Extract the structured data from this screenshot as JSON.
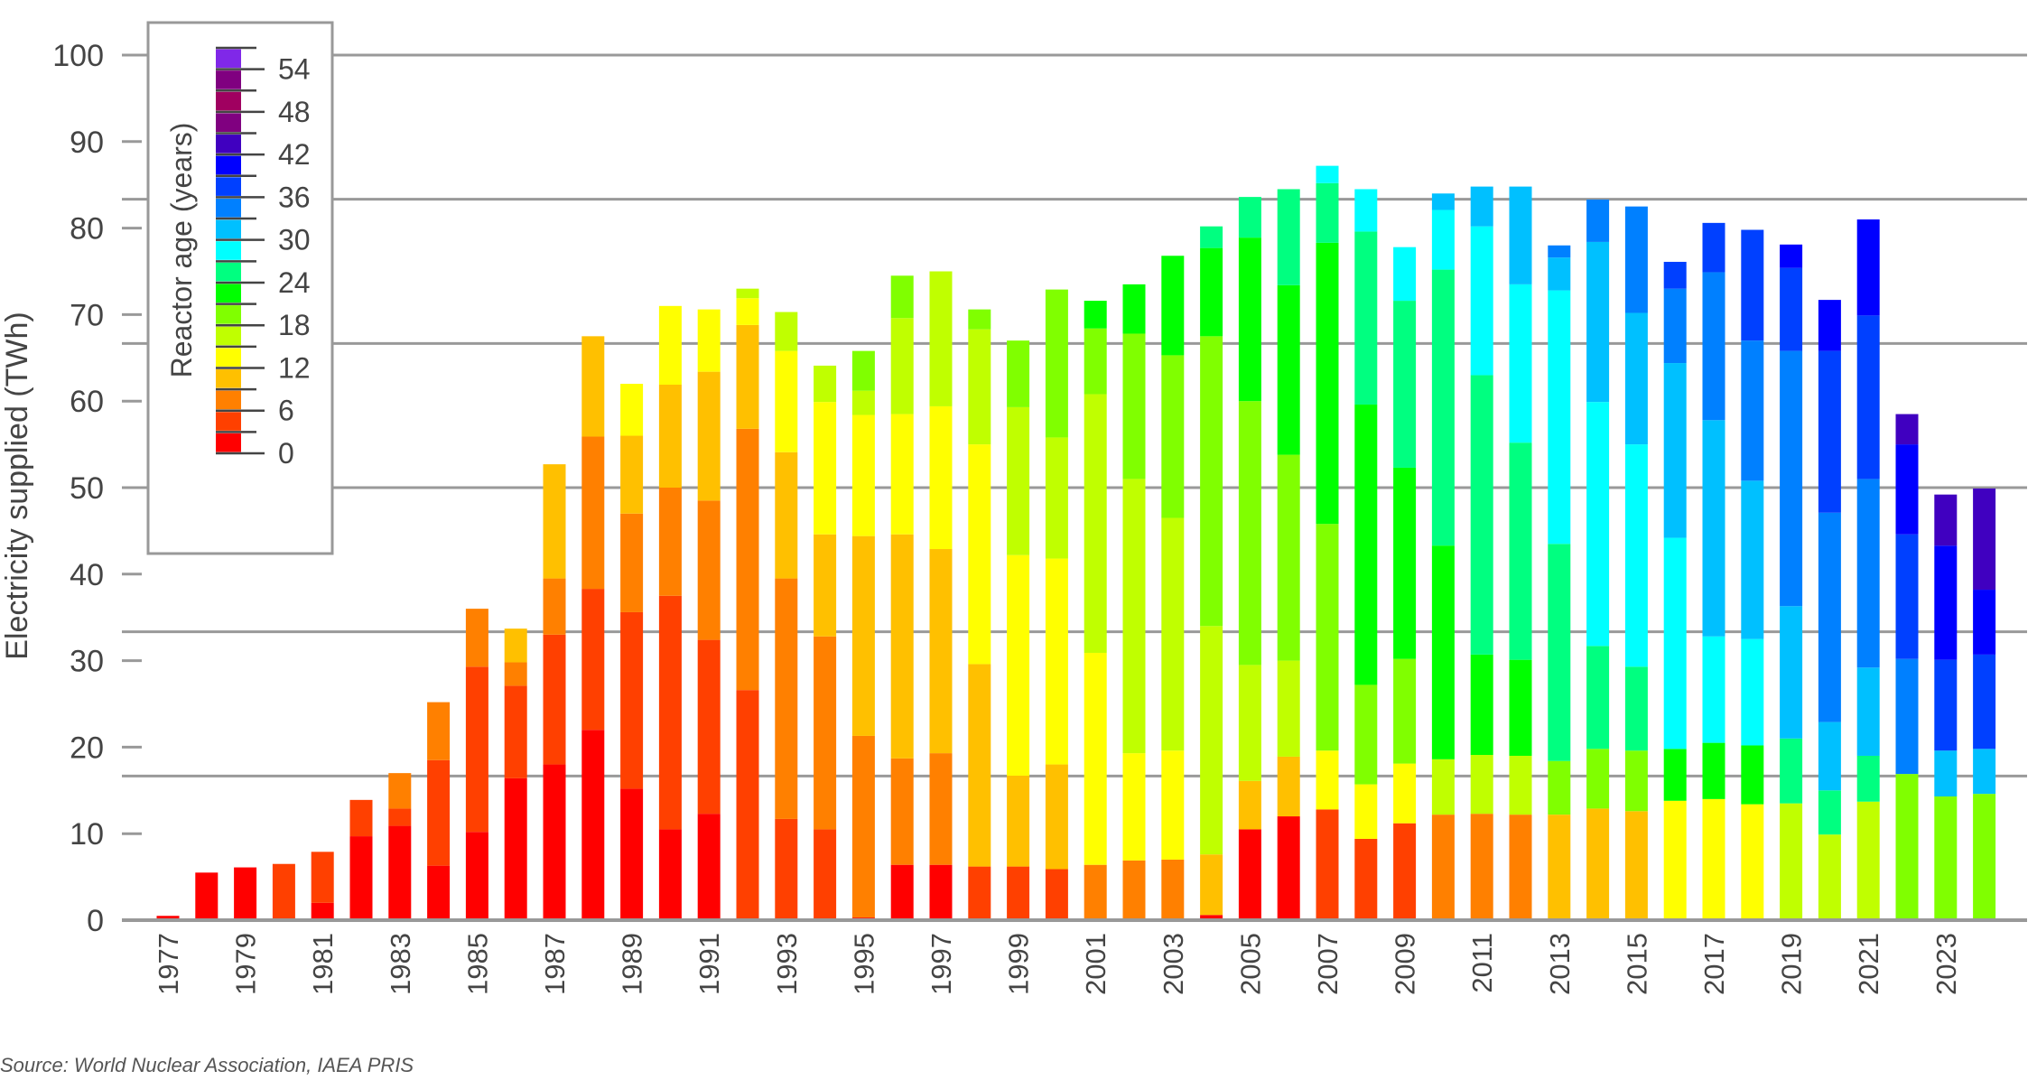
{
  "chart_data": {
    "type": "bar",
    "stacked": true,
    "ylabel": "Electricity supplied (TWh)",
    "ylim": [
      0,
      100
    ],
    "yticks": [
      0,
      10,
      20,
      30,
      40,
      50,
      60,
      70,
      80,
      90,
      100
    ],
    "xtick_labels": [
      "1977",
      "1979",
      "1981",
      "1983",
      "1985",
      "1987",
      "1989",
      "1991",
      "1993",
      "1995",
      "1997",
      "1999",
      "2001",
      "2003",
      "2005",
      "2007",
      "2009",
      "2011",
      "2013",
      "2015",
      "2017",
      "2019",
      "2021",
      "2023"
    ],
    "grid": true,
    "legend": {
      "title": "Reactor age (years)",
      "placement": "top-left",
      "tick_labels": [
        "0",
        "6",
        "12",
        "18",
        "24",
        "30",
        "36",
        "42",
        "48",
        "54"
      ],
      "bands": [
        0,
        3,
        6,
        9,
        12,
        15,
        18,
        21,
        24,
        27,
        30,
        33,
        36,
        39,
        42,
        45,
        48,
        51,
        54
      ],
      "colors": [
        "#ff0000",
        "#ff4000",
        "#ff8000",
        "#ffc000",
        "#ffff00",
        "#c0ff00",
        "#80ff00",
        "#00ff00",
        "#00ff80",
        "#00ffff",
        "#00c0ff",
        "#0080ff",
        "#0040ff",
        "#0000ff",
        "#4000c0",
        "#800080",
        "#a00060",
        "#800080",
        "#8028e8"
      ]
    },
    "years": [
      1977,
      1978,
      1979,
      1980,
      1981,
      1982,
      1983,
      1984,
      1985,
      1986,
      1987,
      1988,
      1989,
      1990,
      1991,
      1992,
      1993,
      1994,
      1995,
      1996,
      1997,
      1998,
      1999,
      2000,
      2001,
      2002,
      2003,
      2004,
      2005,
      2006,
      2007,
      2008,
      2009,
      2010,
      2011,
      2012,
      2013,
      2014,
      2015,
      2016,
      2017,
      2018,
      2019,
      2020,
      2021,
      2022,
      2023,
      2024
    ],
    "segments_age_twh": [
      [
        [
          0,
          0.5
        ]
      ],
      [
        [
          0,
          5.5
        ]
      ],
      [
        [
          0,
          6.1
        ]
      ],
      [
        [
          3,
          6.5
        ]
      ],
      [
        [
          0,
          2
        ],
        [
          3,
          5.9
        ]
      ],
      [
        [
          0,
          9.7
        ],
        [
          3,
          4.2
        ]
      ],
      [
        [
          0,
          10.9
        ],
        [
          3,
          2
        ],
        [
          6,
          4.1
        ]
      ],
      [
        [
          0,
          6.3
        ],
        [
          3,
          12.2
        ],
        [
          6,
          6.7
        ]
      ],
      [
        [
          0,
          10.2
        ],
        [
          3,
          19.1
        ],
        [
          6,
          6.7
        ]
      ],
      [
        [
          0,
          16.4
        ],
        [
          3,
          10.7
        ],
        [
          6,
          2.7
        ],
        [
          9,
          3.9
        ]
      ],
      [
        [
          0,
          18
        ],
        [
          3,
          15
        ],
        [
          6,
          6.5
        ],
        [
          9,
          13.2
        ]
      ],
      [
        [
          0,
          22
        ],
        [
          3,
          16.3
        ],
        [
          6,
          17.6
        ],
        [
          9,
          11.6
        ]
      ],
      [
        [
          0,
          15.2
        ],
        [
          3,
          20.4
        ],
        [
          6,
          11.4
        ],
        [
          9,
          9
        ],
        [
          12,
          6
        ]
      ],
      [
        [
          0,
          10.5
        ],
        [
          3,
          27
        ],
        [
          6,
          12.5
        ],
        [
          9,
          11.9
        ],
        [
          12,
          9.1
        ]
      ],
      [
        [
          0,
          12.3
        ],
        [
          3,
          20.1
        ],
        [
          6,
          16.1
        ],
        [
          9,
          14.9
        ],
        [
          12,
          7.2
        ]
      ],
      [
        [
          3,
          26.6
        ],
        [
          6,
          30.2
        ],
        [
          9,
          12
        ],
        [
          12,
          3.1
        ],
        [
          15,
          1.1
        ]
      ],
      [
        [
          3,
          11.7
        ],
        [
          6,
          27.8
        ],
        [
          9,
          14.6
        ],
        [
          12,
          11.7
        ],
        [
          15,
          4.5
        ]
      ],
      [
        [
          3,
          10.5
        ],
        [
          6,
          22.3
        ],
        [
          9,
          11.8
        ],
        [
          12,
          15.3
        ],
        [
          15,
          4.2
        ]
      ],
      [
        [
          0,
          0.3
        ],
        [
          6,
          21
        ],
        [
          9,
          23.1
        ],
        [
          12,
          14
        ],
        [
          15,
          2.8
        ],
        [
          18,
          4.6
        ]
      ],
      [
        [
          0,
          6.4
        ],
        [
          6,
          12.3
        ],
        [
          9,
          25.9
        ],
        [
          12,
          13.9
        ],
        [
          15,
          11.1
        ],
        [
          18,
          4.9
        ]
      ],
      [
        [
          0,
          6.4
        ],
        [
          6,
          12.9
        ],
        [
          9,
          23.6
        ],
        [
          12,
          16.5
        ],
        [
          15,
          15.6
        ]
      ],
      [
        [
          3,
          6.2
        ],
        [
          9,
          23.4
        ],
        [
          12,
          25.4
        ],
        [
          15,
          13.3
        ],
        [
          18,
          2.3
        ]
      ],
      [
        [
          3,
          6.2
        ],
        [
          9,
          10.5
        ],
        [
          12,
          25.5
        ],
        [
          15,
          17.1
        ],
        [
          18,
          7.7
        ]
      ],
      [
        [
          3,
          5.9
        ],
        [
          9,
          12.1
        ],
        [
          12,
          23.8
        ],
        [
          15,
          14
        ],
        [
          18,
          17.1
        ]
      ],
      [
        [
          6,
          6.4
        ],
        [
          12,
          24.5
        ],
        [
          15,
          29.9
        ],
        [
          18,
          7.6
        ],
        [
          21,
          3.2
        ]
      ],
      [
        [
          6,
          6.9
        ],
        [
          12,
          12.4
        ],
        [
          15,
          31.7
        ],
        [
          18,
          16.8
        ],
        [
          21,
          5.7
        ]
      ],
      [
        [
          6,
          7
        ],
        [
          12,
          12.6
        ],
        [
          15,
          26.9
        ],
        [
          18,
          18.8
        ],
        [
          21,
          11.5
        ]
      ],
      [
        [
          0,
          0.6
        ],
        [
          9,
          7
        ],
        [
          15,
          26.4
        ],
        [
          18,
          33.5
        ],
        [
          21,
          10.2
        ],
        [
          24,
          2.5
        ]
      ],
      [
        [
          0,
          10.5
        ],
        [
          9,
          5.6
        ],
        [
          15,
          13.4
        ],
        [
          18,
          30.5
        ],
        [
          21,
          18.9
        ],
        [
          24,
          4.7
        ]
      ],
      [
        [
          0,
          12
        ],
        [
          9,
          6.9
        ],
        [
          15,
          11.1
        ],
        [
          18,
          23.8
        ],
        [
          21,
          19.6
        ],
        [
          24,
          11.1
        ]
      ],
      [
        [
          3,
          12.8
        ],
        [
          12,
          6.8
        ],
        [
          18,
          26.2
        ],
        [
          21,
          32.5
        ],
        [
          24,
          6.9
        ],
        [
          27,
          2
        ]
      ],
      [
        [
          3,
          9.4
        ],
        [
          12,
          6.3
        ],
        [
          18,
          11.5
        ],
        [
          21,
          32.4
        ],
        [
          24,
          20
        ],
        [
          27,
          4.9
        ]
      ],
      [
        [
          3,
          11.2
        ],
        [
          12,
          6.9
        ],
        [
          18,
          12.1
        ],
        [
          21,
          22.1
        ],
        [
          24,
          19.3
        ],
        [
          27,
          6.2
        ]
      ],
      [
        [
          6,
          12.2
        ],
        [
          15,
          6.4
        ],
        [
          21,
          24.7
        ],
        [
          24,
          31.9
        ],
        [
          27,
          6.9
        ],
        [
          30,
          1.9
        ]
      ],
      [
        [
          6,
          12.3
        ],
        [
          15,
          6.8
        ],
        [
          21,
          11.6
        ],
        [
          24,
          32.3
        ],
        [
          27,
          17.2
        ],
        [
          30,
          4.6
        ]
      ],
      [
        [
          6,
          12.2
        ],
        [
          15,
          6.8
        ],
        [
          21,
          11.1
        ],
        [
          24,
          25.1
        ],
        [
          27,
          18.3
        ],
        [
          30,
          11.3
        ]
      ],
      [
        [
          9,
          12.2
        ],
        [
          18,
          6.2
        ],
        [
          24,
          25.1
        ],
        [
          27,
          29.3
        ],
        [
          30,
          3.8
        ],
        [
          33,
          1.4
        ]
      ],
      [
        [
          9,
          12.9
        ],
        [
          18,
          6.9
        ],
        [
          24,
          11.9
        ],
        [
          27,
          28.2
        ],
        [
          30,
          18.5
        ],
        [
          33,
          4.9
        ]
      ],
      [
        [
          9,
          12.6
        ],
        [
          18,
          7
        ],
        [
          24,
          9.7
        ],
        [
          27,
          25.7
        ],
        [
          30,
          15.2
        ],
        [
          33,
          12.3
        ]
      ],
      [
        [
          12,
          13.8
        ],
        [
          21,
          6
        ],
        [
          27,
          24.4
        ],
        [
          30,
          20.2
        ],
        [
          33,
          8.6
        ],
        [
          36,
          3.1
        ]
      ],
      [
        [
          12,
          14
        ],
        [
          21,
          6.5
        ],
        [
          27,
          12.3
        ],
        [
          30,
          25
        ],
        [
          33,
          17.1
        ],
        [
          36,
          5.7
        ]
      ],
      [
        [
          12,
          13.4
        ],
        [
          21,
          6.8
        ],
        [
          27,
          12.3
        ],
        [
          30,
          18.3
        ],
        [
          33,
          16.2
        ],
        [
          36,
          12.8
        ]
      ],
      [
        [
          15,
          13.5
        ],
        [
          24,
          7.5
        ],
        [
          30,
          15.3
        ],
        [
          33,
          29.5
        ],
        [
          36,
          9.6
        ],
        [
          39,
          2.7
        ]
      ],
      [
        [
          15,
          9.9
        ],
        [
          24,
          5.1
        ],
        [
          30,
          7.9
        ],
        [
          33,
          24.2
        ],
        [
          36,
          18.7
        ],
        [
          39,
          5.9
        ]
      ],
      [
        [
          15,
          13.7
        ],
        [
          24,
          5.3
        ],
        [
          30,
          10.2
        ],
        [
          33,
          21.8
        ],
        [
          36,
          18.9
        ],
        [
          39,
          11.1
        ]
      ],
      [
        [
          18,
          16.9
        ],
        [
          33,
          13.3
        ],
        [
          36,
          14.4
        ],
        [
          39,
          10.4
        ],
        [
          42,
          3.5
        ]
      ],
      [
        [
          18,
          14.3
        ],
        [
          30,
          5.3
        ],
        [
          36,
          10.5
        ],
        [
          39,
          13.2
        ],
        [
          42,
          5.9
        ]
      ],
      [
        [
          18,
          14.6
        ],
        [
          30,
          5.2
        ],
        [
          36,
          10.9
        ],
        [
          39,
          7.5
        ],
        [
          42,
          11.7
        ]
      ]
    ]
  },
  "source": "Source: World Nuclear Association, IAEA PRIS"
}
